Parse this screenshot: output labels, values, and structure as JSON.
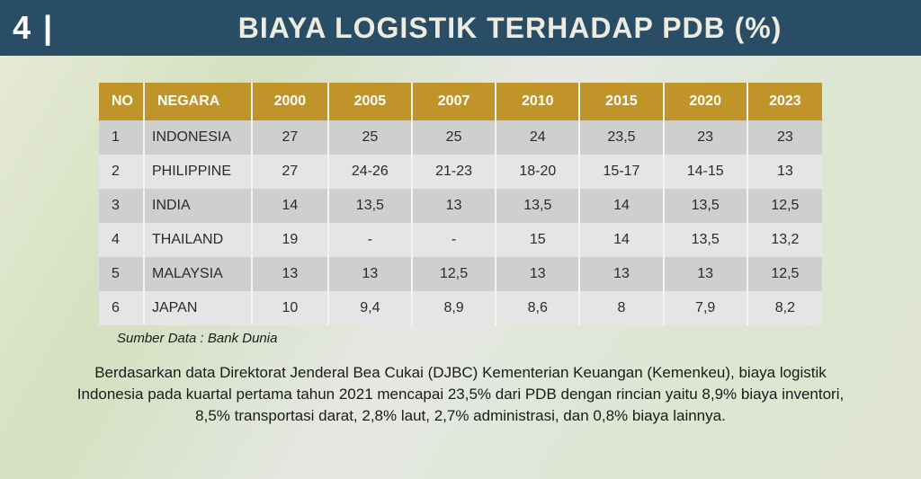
{
  "header": {
    "page_number": "4 |",
    "title": "BIAYA LOGISTIK TERHADAP PDB (%)",
    "bar_color": "#2a4d66",
    "title_color": "#ecede0"
  },
  "table": {
    "header_bg": "#c09428",
    "header_fg": "#ffffff",
    "row_odd_bg": "#cfcfcf",
    "row_even_bg": "#e5e5e5",
    "columns": [
      "NO",
      "NEGARA",
      "2000",
      "2005",
      "2007",
      "2010",
      "2015",
      "2020",
      "2023"
    ],
    "rows": [
      [
        "1",
        "INDONESIA",
        "27",
        "25",
        "25",
        "24",
        "23,5",
        "23",
        "23"
      ],
      [
        "2",
        "PHILIPPINE",
        "27",
        "24-26",
        "21-23",
        "18-20",
        "15-17",
        "14-15",
        "13"
      ],
      [
        "3",
        "INDIA",
        "14",
        "13,5",
        "13",
        "13,5",
        "14",
        "13,5",
        "12,5"
      ],
      [
        "4",
        "THAILAND",
        "19",
        "-",
        "-",
        "15",
        "14",
        "13,5",
        "13,2"
      ],
      [
        "5",
        "MALAYSIA",
        "13",
        "13",
        "12,5",
        "13",
        "13",
        "13",
        "12,5"
      ],
      [
        "6",
        "JAPAN",
        "10",
        "9,4",
        "8,9",
        "8,6",
        "8",
        "7,9",
        "8,2"
      ]
    ]
  },
  "source": "Sumber Data : Bank Dunia",
  "caption": "Berdasarkan data Direktorat Jenderal Bea Cukai (DJBC) Kementerian Keuangan (Kemenkeu), biaya logistik Indonesia pada kuartal pertama tahun 2021 mencapai 23,5% dari PDB dengan rincian yaitu 8,9% biaya inventori, 8,5% transportasi darat, 2,8% laut, 2,7% administrasi, dan 0,8% biaya lainnya.",
  "background_gradient": [
    "#e8ebd8",
    "#d4e0c0",
    "#e6e8e4",
    "#dce6d2",
    "#e0e4d0"
  ]
}
